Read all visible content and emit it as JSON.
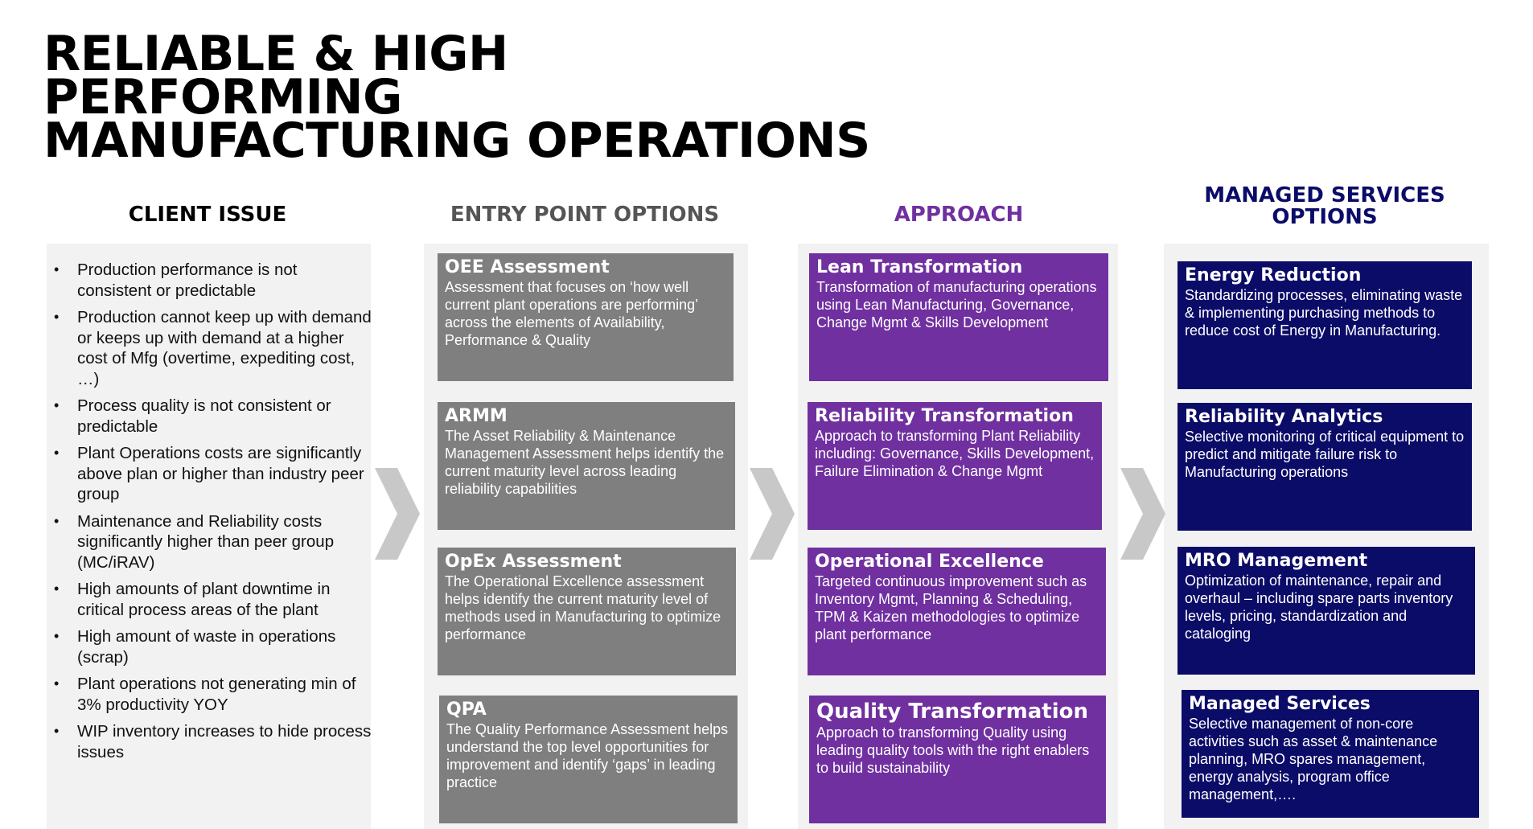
{
  "title": {
    "line1": "RELIABLE & HIGH",
    "line2": "PERFORMING",
    "line3": "MANUFACTURING OPERATIONS"
  },
  "columns": {
    "client_issue": "CLIENT ISSUE",
    "entry_points": "ENTRY POINT OPTIONS",
    "approach": "APPROACH",
    "managed_line1": "MANAGED SERVICES",
    "managed_line2": "OPTIONS"
  },
  "colors": {
    "grey_card": "#7f7f7f",
    "approach_purple": "#7030a0",
    "managed_navy": "#0b0c68",
    "panel_bg": "#f2f2f2",
    "chevron": "#c8c8c8"
  },
  "client_issues": [
    "Production performance is not consistent or predictable",
    "Production cannot keep up with demand or keeps up with demand at a higher cost of Mfg (overtime, expediting cost, …)",
    "Process quality is not consistent or predictable",
    "Plant Operations costs are significantly above plan or higher than industry peer group",
    "Maintenance and Reliability costs significantly higher than peer group (MC/iRAV)",
    "High amounts of plant downtime in critical process areas of the plant",
    "High amount of waste in operations (scrap)",
    "Plant operations not generating min of 3% productivity YOY",
    "WIP inventory increases to hide process issues"
  ],
  "entry_points": [
    {
      "title": "OEE Assessment",
      "desc": "Assessment that focuses on ‘how well current plant operations are performing’ across the elements of Availability, Performance & Quality"
    },
    {
      "title": "ARMM",
      "desc": "The Asset Reliability & Maintenance Management Assessment helps identify the current maturity level across leading reliability capabilities"
    },
    {
      "title": "OpEx Assessment",
      "desc": "The Operational Excellence assessment helps identify the current maturity level of  methods used in Manufacturing to optimize performance"
    },
    {
      "title": "QPA",
      "desc": "The Quality Performance Assessment helps understand the top level opportunities for improvement and identify ‘gaps’ in leading practice"
    }
  ],
  "approach": [
    {
      "title": "Lean Transformation",
      "desc": "Transformation of manufacturing operations using Lean Manufacturing, Governance, Change Mgmt & Skills Development"
    },
    {
      "title": "Reliability Transformation",
      "desc": "Approach to transforming Plant Reliability including: Governance, Skills Development, Failure Elimination & Change Mgmt"
    },
    {
      "title": "Operational Excellence",
      "desc": "Targeted continuous improvement such as Inventory Mgmt, Planning & Scheduling, TPM & Kaizen methodologies to optimize plant performance"
    },
    {
      "title": "Quality Transformation",
      "desc": "Approach to transforming Quality using leading quality tools  with the right enablers to build sustainability"
    }
  ],
  "managed_services": [
    {
      "title": "Energy Reduction",
      "desc": "Standardizing processes, eliminating waste & implementing purchasing methods to reduce cost of Energy in Manufacturing."
    },
    {
      "title": "Reliability Analytics",
      "desc": "Selective monitoring of critical equipment to predict and mitigate failure risk to Manufacturing operations"
    },
    {
      "title": "MRO Management",
      "desc": "Optimization of maintenance, repair and overhaul – including spare parts inventory levels, pricing, standardization and cataloging"
    },
    {
      "title": "Managed Services",
      "desc": "Selective management of non-core activities such as asset & maintenance planning, MRO spares management, energy analysis, program  office management,…."
    }
  ]
}
